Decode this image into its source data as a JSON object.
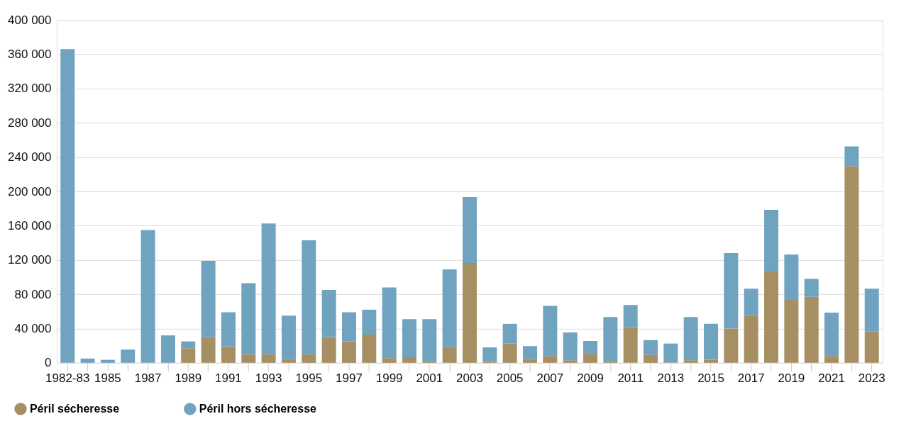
{
  "chart_data": {
    "type": "bar",
    "stacked": true,
    "categories": [
      "1982-83",
      null,
      "1985",
      null,
      "1987",
      null,
      "1989",
      null,
      "1991",
      null,
      "1993",
      null,
      "1995",
      null,
      "1997",
      null,
      "1999",
      null,
      "2001",
      null,
      "2003",
      null,
      "2005",
      null,
      "2007",
      null,
      "2009",
      null,
      "2011",
      null,
      "2013",
      null,
      "2015",
      null,
      "2017",
      null,
      "2019",
      null,
      "2021",
      null,
      "2023"
    ],
    "series": [
      {
        "name": "Péril sécheresse",
        "color": "#a68f63",
        "values": [
          0,
          0,
          0,
          0,
          0,
          0,
          17000,
          30000,
          19000,
          10000,
          10000,
          4500,
          10000,
          30000,
          25000,
          33000,
          5500,
          6500,
          2000,
          18500,
          116500,
          2000,
          22500,
          4500,
          8000,
          3000,
          10500,
          2000,
          41500,
          9500,
          500,
          3000,
          3500,
          40000,
          55000,
          106500,
          73500,
          77000,
          8000,
          229500,
          36500
        ]
      },
      {
        "name": "Péril hors sécheresse",
        "color": "#6fa3c0",
        "values": [
          366000,
          5000,
          3500,
          15500,
          155000,
          32000,
          8000,
          89000,
          40000,
          83000,
          152500,
          50500,
          133000,
          55000,
          34000,
          29000,
          82500,
          44500,
          49000,
          90500,
          77000,
          16000,
          23000,
          15000,
          58500,
          32500,
          15000,
          51500,
          26000,
          17000,
          22000,
          50500,
          42000,
          88000,
          31500,
          72000,
          53000,
          21000,
          50500,
          23000,
          50000
        ]
      }
    ],
    "ylim": [
      0,
      400000
    ],
    "yticks": [
      0,
      {
        "value": 40000,
        "label": "40 000"
      },
      {
        "value": 80000,
        "label": "80 000"
      },
      {
        "value": 120000,
        "label": "120 000"
      },
      {
        "value": 160000,
        "label": "160 000"
      },
      {
        "value": 200000,
        "label": "200 000"
      },
      {
        "value": 240000,
        "label": "240 000"
      },
      {
        "value": 280000,
        "label": "280 000"
      },
      {
        "value": 320000,
        "label": "320 000"
      },
      {
        "value": 360000,
        "label": "360 000"
      },
      {
        "value": 400000,
        "label": "400 000"
      }
    ],
    "grid": "y",
    "legend": "bottom left"
  }
}
